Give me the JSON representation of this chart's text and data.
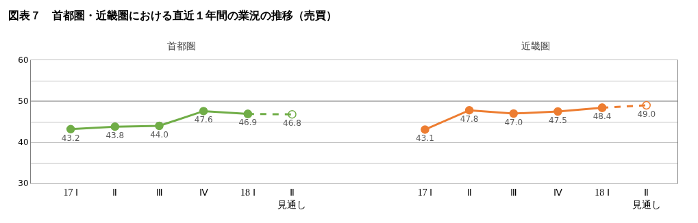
{
  "chart_data": {
    "type": "line",
    "title": "図表７　首都圏・近畿圏における直近１年間の業況の推移（売買）",
    "annotations": [
      "首都圏",
      "近畿圏"
    ],
    "categories": [
      "17 Ⅰ",
      "Ⅱ",
      "Ⅲ",
      "Ⅳ",
      "18 Ⅰ",
      "Ⅱ\n見通し",
      null,
      null,
      "17 Ⅰ",
      "Ⅱ",
      "Ⅲ",
      "Ⅳ",
      "18 Ⅰ",
      "Ⅱ\n見通し"
    ],
    "series": [
      {
        "color": "#70ad47",
        "line_style": "dashed",
        "marker": "circle",
        "values": [
          null,
          null,
          null,
          null,
          46.9,
          46.8,
          null,
          null,
          null,
          null,
          null,
          null,
          null,
          null
        ],
        "value_labels": [
          null,
          null,
          null,
          null,
          null,
          "46.8",
          null,
          null,
          null,
          null,
          null,
          null,
          null,
          null
        ]
      },
      {
        "color": "#70ad47",
        "line_style": "solid",
        "marker": "circle",
        "values": [
          43.2,
          43.8,
          44.0,
          47.6,
          46.9,
          null,
          null,
          null,
          null,
          null,
          null,
          null,
          null,
          null
        ],
        "value_labels": [
          "43.2",
          "43.8",
          "44.0",
          "47.6",
          "46.9",
          null,
          null,
          null,
          null,
          null,
          null,
          null,
          null,
          null
        ]
      },
      {
        "color": "#ed7d31",
        "line_style": "dashed",
        "marker": "circle",
        "values": [
          null,
          null,
          null,
          null,
          null,
          null,
          null,
          null,
          null,
          null,
          null,
          null,
          48.4,
          49.0
        ],
        "value_labels": [
          null,
          null,
          null,
          null,
          null,
          null,
          null,
          null,
          null,
          null,
          null,
          null,
          null,
          "49.0"
        ]
      },
      {
        "color": "#ed7d31",
        "line_style": "solid",
        "marker": "circle",
        "values": [
          null,
          null,
          null,
          null,
          null,
          null,
          null,
          null,
          43.1,
          47.8,
          47.0,
          47.5,
          48.4,
          null
        ],
        "value_labels": [
          null,
          null,
          null,
          null,
          null,
          null,
          null,
          null,
          "43.1",
          "47.8",
          "47.0",
          "47.5",
          "48.4",
          null
        ]
      }
    ],
    "ylim": [
      30,
      60
    ],
    "yticks": [
      30,
      {
        "value": 35,
        "label": null
      },
      40,
      {
        "value": 45,
        "label": null
      },
      50,
      {
        "value": 55,
        "label": null
      },
      60
    ],
    "ref_lines": [
      {
        "axis": "y",
        "value": 50,
        "color": "#7f7f7f"
      }
    ],
    "grid": "y"
  }
}
